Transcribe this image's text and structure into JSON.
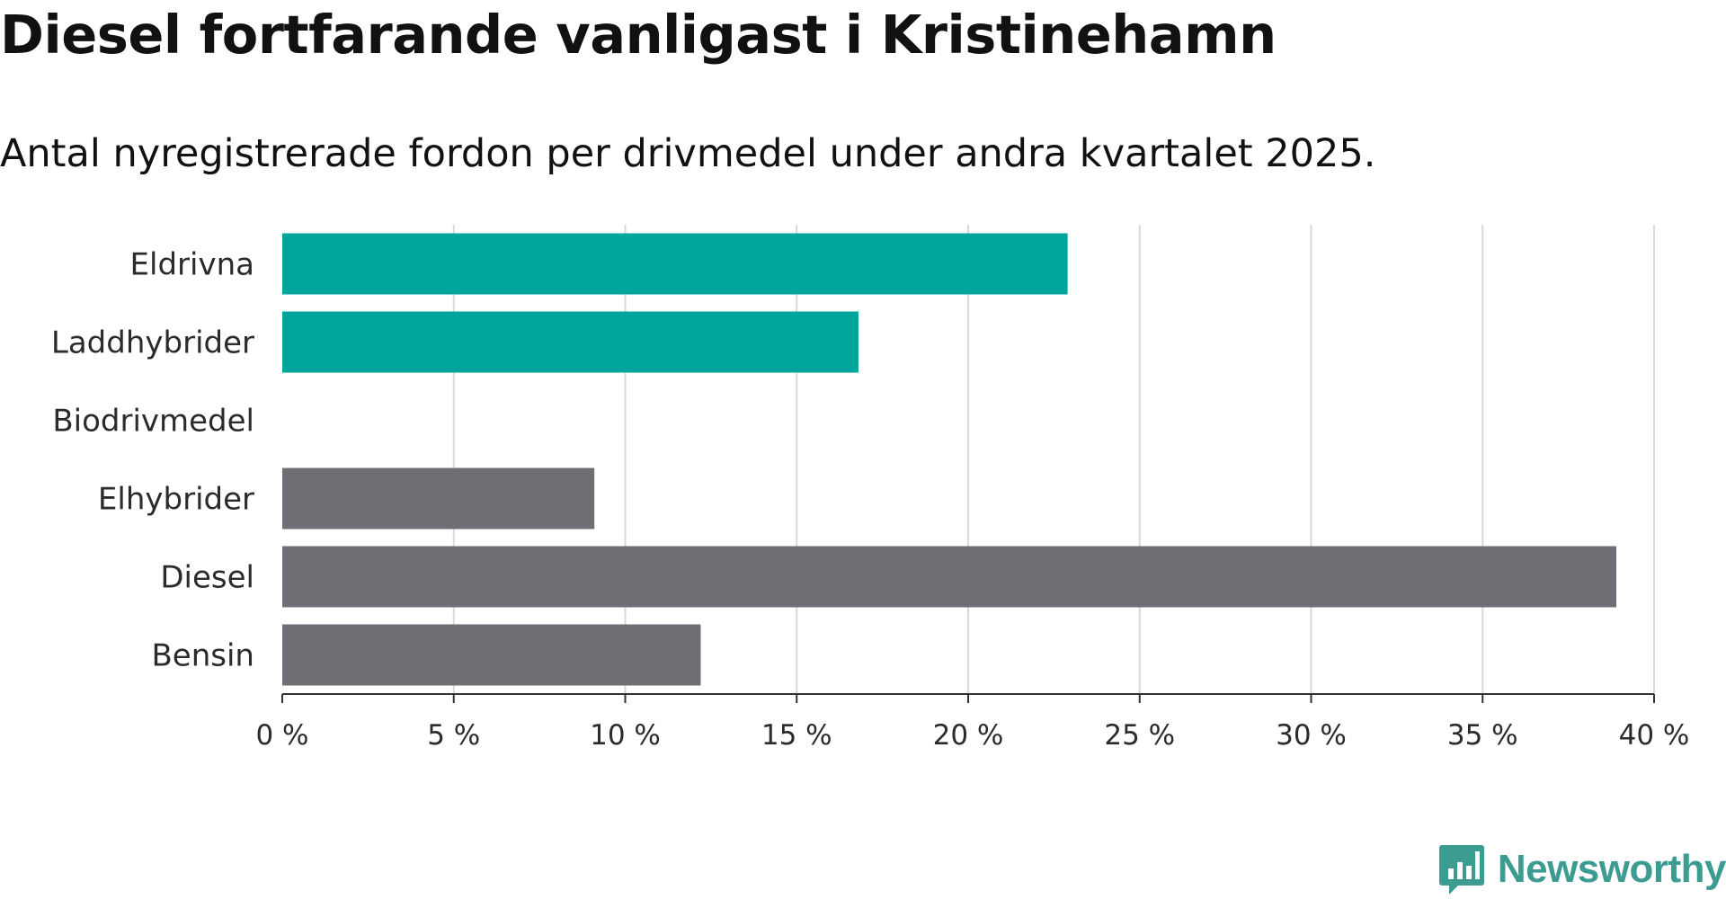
{
  "chart_data": {
    "type": "bar",
    "orientation": "horizontal",
    "title": "Diesel fortfarande vanligast i Kristinehamn",
    "subtitle": "Antal nyregistrerade fordon per drivmedel under andra kvartalet 2025.",
    "categories": [
      "Eldrivna",
      "Laddhybrider",
      "Biodrivmedel",
      "Elhybrider",
      "Diesel",
      "Bensin"
    ],
    "values": [
      22.9,
      16.8,
      0,
      9.1,
      38.9,
      12.2
    ],
    "colors": [
      "#00a69c",
      "#00a69c",
      "#6f6e74",
      "#6f6e74",
      "#6f6e74",
      "#6f6e74"
    ],
    "xlim": [
      0,
      40
    ],
    "ticks": [
      0,
      5,
      10,
      15,
      20,
      25,
      30,
      35,
      40
    ],
    "tick_labels": [
      "0 %",
      "5 %",
      "10 %",
      "15 %",
      "20 %",
      "25 %",
      "30 %",
      "35 %",
      "40 %"
    ],
    "grid": true
  },
  "branding": {
    "logo_text": "Newsworthy",
    "logo_color": "#3d9c92"
  }
}
